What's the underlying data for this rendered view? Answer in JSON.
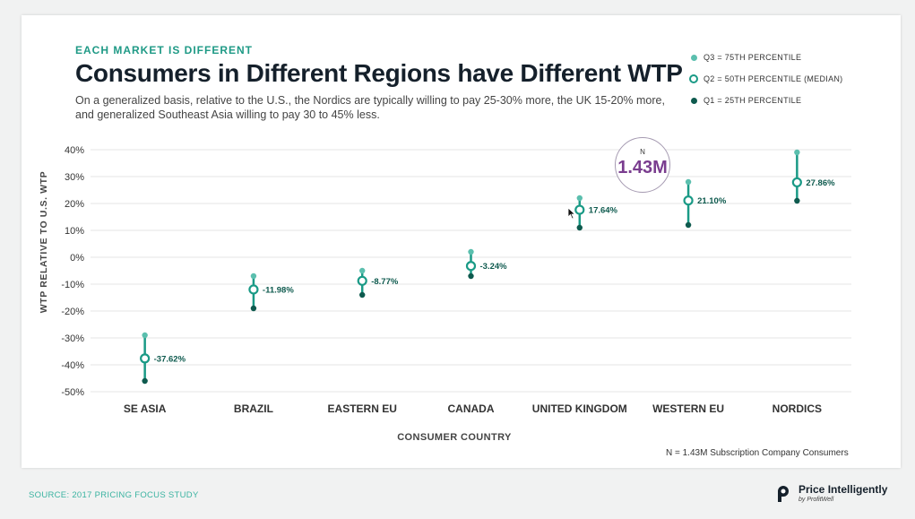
{
  "header": {
    "eyebrow": "EACH MARKET IS DIFFERENT",
    "title": "Consumers in Different Regions have Different WTP",
    "subtitle": "On a generalized basis, relative to the U.S., the Nordics are typically willing to pay 25-30% more, the UK 15-20% more, and generalized Southeast Asia willing to pay 30 to 45% less."
  },
  "legend": {
    "q3": "Q3 = 75TH PERCENTILE",
    "q2": "Q2 = 50TH PERCENTILE (MEDIAN)",
    "q1": "Q1 = 25TH PERCENTILE"
  },
  "n_bubble": {
    "label": "N",
    "value": "1.43M"
  },
  "footnote": "N = 1.43M Subscription Company Consumers",
  "source": "SOURCE: 2017 PRICING FOCUS STUDY",
  "brand": {
    "name": "Price Intelligently",
    "sub": "by ProfitWell"
  },
  "colors": {
    "q3": "#5bbfae",
    "q2": "#1a9a86",
    "q1": "#0e5a4e",
    "median_label": "#0e5a4e",
    "grid": "#e4e4e4",
    "accent_purple": "#7a3d8f"
  },
  "chart_data": {
    "type": "scatter",
    "categories": [
      "SE ASIA",
      "BRAZIL",
      "EASTERN EU",
      "CANADA",
      "UNITED KINGDOM",
      "WESTERN EU",
      "NORDICS"
    ],
    "series": [
      {
        "name": "Q3 = 75TH PERCENTILE",
        "values": [
          -29,
          -7,
          -5,
          2,
          22,
          28,
          39
        ]
      },
      {
        "name": "Q2 = 50TH PERCENTILE (MEDIAN)",
        "values": [
          -37.62,
          -11.98,
          -8.77,
          -3.24,
          17.64,
          21.1,
          27.86
        ]
      },
      {
        "name": "Q1 = 25TH PERCENTILE",
        "values": [
          -46,
          -19,
          -14,
          -7,
          11,
          12,
          21
        ]
      }
    ],
    "median_labels": [
      "-37.62%",
      "-11.98%",
      "-8.77%",
      "-3.24%",
      "17.64%",
      "21.10%",
      "27.86%"
    ],
    "yticks": [
      "40%",
      "30%",
      "20%",
      "10%",
      "0%",
      "-10%",
      "-20%",
      "-30%",
      "-40%",
      "-50%"
    ],
    "ylim": [
      -50,
      40
    ],
    "xlabel": "CONSUMER COUNTRY",
    "ylabel": "WTP RELATIVE TO U.S. WTP",
    "grid": true,
    "legend_position": "top-right"
  }
}
